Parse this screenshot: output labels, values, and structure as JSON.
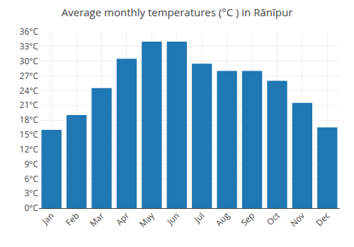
{
  "chart_data": {
    "type": "bar",
    "title": "Average monthly temperatures (°C ) in Rānīpur",
    "categories": [
      "Jan",
      "Feb",
      "Mar",
      "Apr",
      "May",
      "Jun",
      "Jul",
      "Aug",
      "Sep",
      "Oct",
      "Nov",
      "Dec"
    ],
    "values": [
      16,
      19,
      24.5,
      30.5,
      34,
      34,
      29.5,
      28,
      28,
      26,
      21.5,
      16.5
    ],
    "ylim": [
      0,
      36
    ],
    "yticks": [
      {
        "value": 0,
        "label": "0°C"
      },
      {
        "value": 3,
        "label": "3°C"
      },
      {
        "value": 6,
        "label": "6°C"
      },
      {
        "value": 9,
        "label": "9°C"
      },
      {
        "value": 12,
        "label": "12°C"
      },
      {
        "value": 15,
        "label": "15°C"
      },
      {
        "value": 18,
        "label": "18°C"
      },
      {
        "value": 21,
        "label": "21°C"
      },
      {
        "value": 24,
        "label": "24°C"
      },
      {
        "value": 27,
        "label": "27°C"
      },
      {
        "value": 30,
        "label": "30°C"
      },
      {
        "value": 33,
        "label": "33°C"
      },
      {
        "value": 36,
        "label": "36°C"
      }
    ],
    "grid": true
  }
}
